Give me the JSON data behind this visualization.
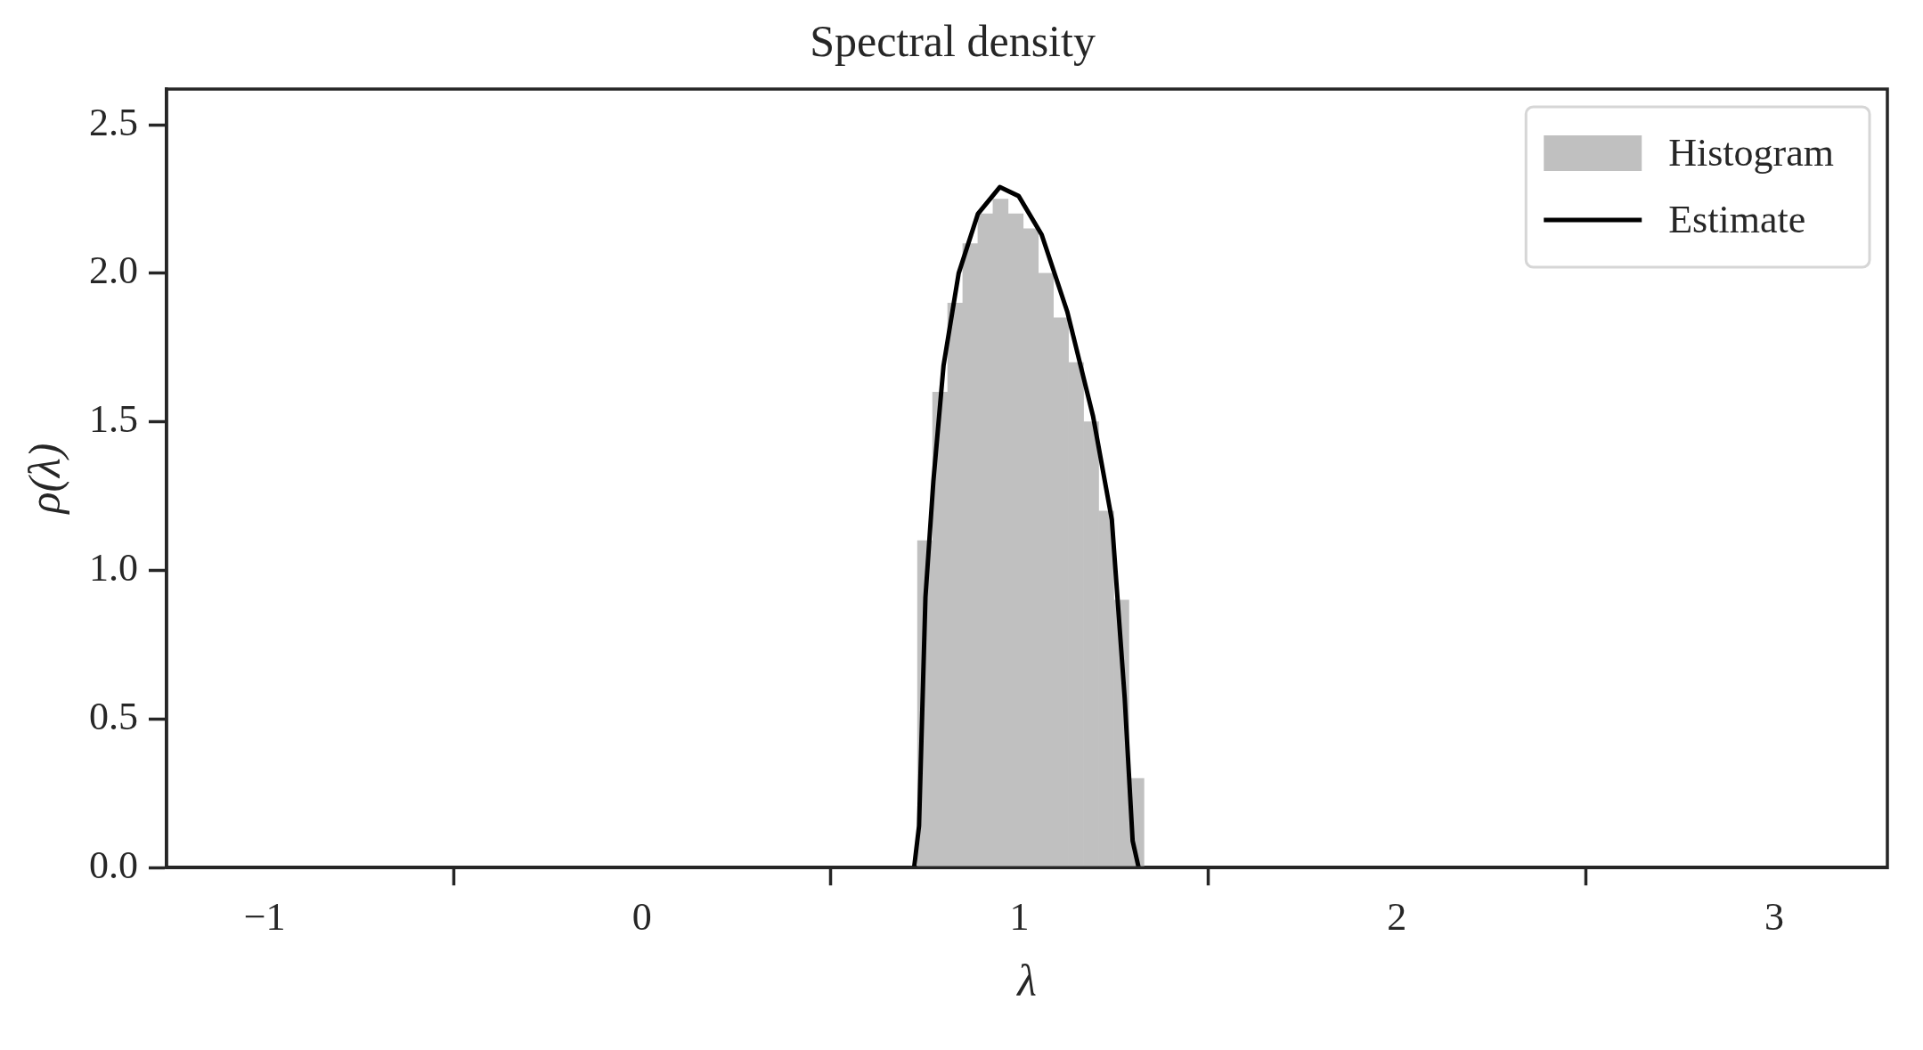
{
  "chart_data": {
    "type": "histogram",
    "title": "Spectral density",
    "xlabel": "λ",
    "ylabel": "ρ(λ)",
    "xlim": [
      -1.26,
      3.3
    ],
    "ylim": [
      0,
      2.62
    ],
    "xticks": [
      {
        "value": -1,
        "label": "−1"
      },
      0,
      1,
      2,
      3
    ],
    "yticks": [
      {
        "value": 0,
        "label": "0.0"
      },
      0.5,
      {
        "value": 1,
        "label": "1.0"
      },
      1.5,
      {
        "value": 2,
        "label": "2.0"
      },
      2.5
    ],
    "grid": false,
    "legend": "top right",
    "series": [
      {
        "name": "Histogram",
        "type": "histogram",
        "color": "#c0c0c0",
        "bins": [
          0.73,
          0.77,
          0.81,
          0.85,
          0.89,
          0.93,
          0.97,
          1.01,
          1.05,
          1.09,
          1.13,
          1.17,
          1.21,
          1.25,
          1.29,
          1.33
        ],
        "values": [
          1.1,
          1.6,
          1.9,
          2.1,
          2.2,
          2.25,
          2.2,
          2.15,
          2.0,
          1.85,
          1.7,
          1.5,
          1.2,
          0.9,
          0.3
        ]
      },
      {
        "name": "Estimate",
        "type": "line",
        "color": "#000000",
        "x": [
          0.721,
          0.734,
          0.751,
          0.772,
          0.799,
          0.839,
          0.89,
          0.948,
          0.998,
          1.059,
          1.127,
          1.195,
          1.245,
          1.279,
          1.3,
          1.316
        ],
        "values": [
          0,
          0.14,
          0.91,
          1.3,
          1.69,
          2.0,
          2.2,
          2.29,
          2.26,
          2.13,
          1.87,
          1.52,
          1.17,
          0.57,
          0.09,
          0
        ]
      }
    ]
  }
}
